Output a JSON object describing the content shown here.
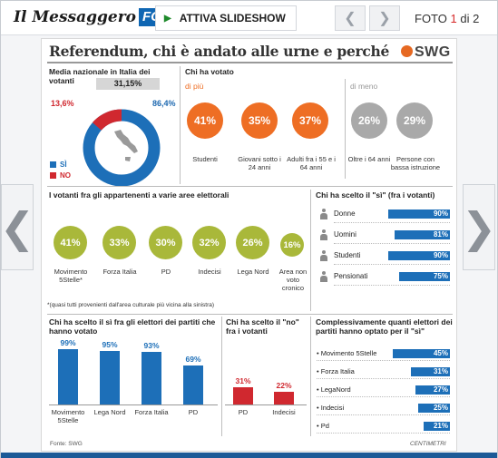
{
  "header": {
    "logo_text": "Il Messaggero",
    "logo_badge": "FOTO",
    "slideshow_label": "ATTIVA SLIDESHOW",
    "prev_icon": "chevron-left-icon",
    "next_icon": "chevron-right-icon",
    "counter_prefix": "FOTO",
    "counter_current": "1",
    "counter_of": "di",
    "counter_total": "2"
  },
  "nav": {
    "left_glyph": "❮",
    "right_glyph": "❯"
  },
  "infographic": {
    "title": "Referendum, chi è andato alle urne e perché",
    "brand": "SWG",
    "turnout": {
      "title": "Media nazionale in Italia dei votanti",
      "value": "31,15%",
      "no_pct": "13,6%",
      "yes_pct": "86,4%",
      "yes_value": 86.4,
      "no_value": 13.6,
      "legend_yes": "SÌ",
      "legend_no": "NO",
      "colors": {
        "yes": "#1d6fb8",
        "no": "#d0282f"
      }
    },
    "who_voted": {
      "title": "Chi ha votato",
      "more_label": "di più",
      "less_label": "di meno",
      "more": [
        {
          "value": "41%",
          "label": "Studenti"
        },
        {
          "value": "35%",
          "label": "Giovani sotto i 24 anni"
        },
        {
          "value": "37%",
          "label": "Adulti fra i 55 e i 64 anni"
        }
      ],
      "less": [
        {
          "value": "26%",
          "label": "Oltre i 64 anni"
        },
        {
          "value": "29%",
          "label": "Persone con bassa istruzione"
        }
      ]
    },
    "areas": {
      "title": "I votanti fra gli appartenenti a varie aree elettorali",
      "items": [
        {
          "value": "41%",
          "label": "Movimento 5Stelle*"
        },
        {
          "value": "33%",
          "label": "Forza Italia"
        },
        {
          "value": "30%",
          "label": "PD"
        },
        {
          "value": "32%",
          "label": "Indecisi"
        },
        {
          "value": "26%",
          "label": "Lega Nord"
        },
        {
          "value": "16%",
          "label": "Area non voto cronico"
        }
      ],
      "footnote": "*(quasi tutti provenienti dall'area culturale più vicina alla sinistra)"
    },
    "yes_among_voters": {
      "title": "Chi ha scelto il \"sì\" (fra i votanti)",
      "items": [
        {
          "label": "Donne",
          "value": 90,
          "text": "90%"
        },
        {
          "label": "Uomini",
          "value": 81,
          "text": "81%"
        },
        {
          "label": "Studenti",
          "value": 90,
          "text": "90%"
        },
        {
          "label": "Pensionati",
          "value": 75,
          "text": "75%"
        }
      ]
    },
    "yes_party_voters": {
      "title": "Chi ha scelto il sì fra gli elettori dei partiti che hanno votato",
      "items": [
        {
          "label": "Movimento 5Stelle",
          "value": 99,
          "text": "99%"
        },
        {
          "label": "Lega Nord",
          "value": 95,
          "text": "95%"
        },
        {
          "label": "Forza Italia",
          "value": 93,
          "text": "93%"
        },
        {
          "label": "PD",
          "value": 69,
          "text": "69%"
        }
      ]
    },
    "no_voters": {
      "title": "Chi ha scelto il \"no\" fra i votanti",
      "items": [
        {
          "label": "PD",
          "value": 31,
          "text": "31%"
        },
        {
          "label": "Indecisi",
          "value": 22,
          "text": "22%"
        }
      ]
    },
    "overall_yes": {
      "title": "Complessivamente quanti elettori dei partiti hanno optato per il \"sì\"",
      "items": [
        {
          "label": "Movimento 5Stelle",
          "value": 45,
          "text": "45%"
        },
        {
          "label": "Forza Italia",
          "value": 31,
          "text": "31%"
        },
        {
          "label": "LegaNord",
          "value": 27,
          "text": "27%"
        },
        {
          "label": "Indecisi",
          "value": 25,
          "text": "25%"
        },
        {
          "label": "Pd",
          "value": 21,
          "text": "21%"
        }
      ]
    },
    "source": "Fonte: SWG",
    "credit": "CENTIMETRI"
  }
}
